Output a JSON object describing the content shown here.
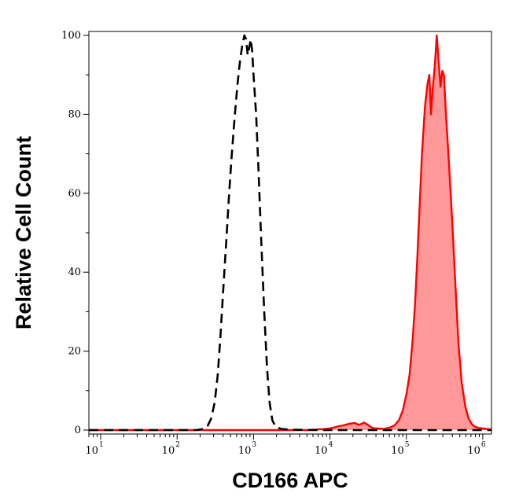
{
  "chart_data": {
    "type": "area",
    "xlabel": "CD166 APC",
    "ylabel": "Relative Cell Count",
    "x_scale": "log",
    "xlim": [
      7,
      1300000
    ],
    "ylim": [
      -1,
      101
    ],
    "x_ticks": [
      {
        "value": 10,
        "base": "10",
        "exp": "1"
      },
      {
        "value": 100,
        "base": "10",
        "exp": "2"
      },
      {
        "value": 1000,
        "base": "10",
        "exp": "3"
      },
      {
        "value": 10000,
        "base": "10",
        "exp": "4"
      },
      {
        "value": 100000,
        "base": "10",
        "exp": "5"
      },
      {
        "value": 1000000,
        "base": "10",
        "exp": "6"
      }
    ],
    "y_ticks": [
      0,
      20,
      40,
      60,
      80,
      100
    ],
    "grid": false,
    "legend": "none",
    "series": [
      {
        "style": "dashed",
        "color": "#000000",
        "fill": "none",
        "points": [
          [
            7,
            0
          ],
          [
            50,
            0
          ],
          [
            120,
            0
          ],
          [
            180,
            0
          ],
          [
            220,
            0.3
          ],
          [
            250,
            1
          ],
          [
            280,
            3
          ],
          [
            310,
            7
          ],
          [
            340,
            14
          ],
          [
            370,
            24
          ],
          [
            400,
            35
          ],
          [
            440,
            48
          ],
          [
            480,
            60
          ],
          [
            520,
            70
          ],
          [
            570,
            80
          ],
          [
            620,
            88
          ],
          [
            670,
            94
          ],
          [
            720,
            98
          ],
          [
            760,
            100
          ],
          [
            800,
            99
          ],
          [
            840,
            95
          ],
          [
            880,
            97
          ],
          [
            920,
            99
          ],
          [
            960,
            96
          ],
          [
            1000,
            90
          ],
          [
            1080,
            80
          ],
          [
            1160,
            66
          ],
          [
            1260,
            48
          ],
          [
            1380,
            30
          ],
          [
            1500,
            16
          ],
          [
            1620,
            7
          ],
          [
            1760,
            2.5
          ],
          [
            1950,
            0.8
          ],
          [
            2300,
            0.3
          ],
          [
            3000,
            0.1
          ],
          [
            8000,
            0
          ],
          [
            1300000,
            0
          ]
        ]
      },
      {
        "style": "solid",
        "color": "#ff0000",
        "fill": "#ff9999",
        "points": [
          [
            7,
            0
          ],
          [
            1000,
            0
          ],
          [
            5000,
            0
          ],
          [
            9000,
            0.3
          ],
          [
            11000,
            0.6
          ],
          [
            13000,
            1
          ],
          [
            15000,
            1.2
          ],
          [
            18000,
            1.6
          ],
          [
            21000,
            1.8
          ],
          [
            24000,
            1.3
          ],
          [
            28000,
            1.9
          ],
          [
            32000,
            1.2
          ],
          [
            36000,
            0.5
          ],
          [
            42000,
            0.4
          ],
          [
            50000,
            0.3
          ],
          [
            60000,
            0.6
          ],
          [
            70000,
            1.2
          ],
          [
            80000,
            2.5
          ],
          [
            90000,
            5
          ],
          [
            100000,
            9
          ],
          [
            110000,
            14
          ],
          [
            120000,
            22
          ],
          [
            130000,
            32
          ],
          [
            140000,
            45
          ],
          [
            150000,
            58
          ],
          [
            160000,
            70
          ],
          [
            175000,
            82
          ],
          [
            190000,
            88
          ],
          [
            200000,
            90
          ],
          [
            210000,
            80
          ],
          [
            220000,
            86
          ],
          [
            235000,
            92
          ],
          [
            250000,
            100
          ],
          [
            265000,
            93
          ],
          [
            280000,
            87
          ],
          [
            295000,
            91
          ],
          [
            310000,
            90
          ],
          [
            330000,
            80
          ],
          [
            360000,
            68
          ],
          [
            400000,
            52
          ],
          [
            440000,
            36
          ],
          [
            480000,
            22
          ],
          [
            530000,
            12
          ],
          [
            590000,
            6
          ],
          [
            650000,
            3
          ],
          [
            720000,
            1.5
          ],
          [
            800000,
            0.8
          ],
          [
            900000,
            0.5
          ],
          [
            1000000,
            0.4
          ],
          [
            1100000,
            0.3
          ],
          [
            1300000,
            0.2
          ]
        ]
      }
    ]
  }
}
